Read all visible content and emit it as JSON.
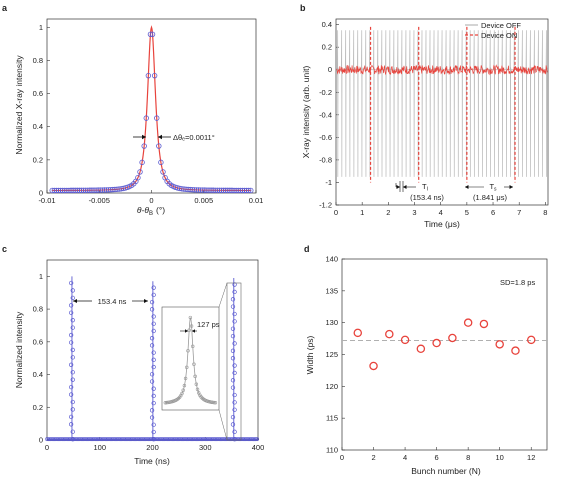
{
  "colors": {
    "red": "#e8433c",
    "blue": "#5b5bd0",
    "gray": "#b8b8b8",
    "gray_dark": "#9a9a9a",
    "dash": "#b0b0b0"
  },
  "panels": [
    {
      "id": "a",
      "label": "a"
    },
    {
      "id": "b",
      "label": "b"
    },
    {
      "id": "c",
      "label": "c"
    },
    {
      "id": "d",
      "label": "d"
    }
  ],
  "chart_data": [
    {
      "id": "a",
      "type": "scatter",
      "xlabel": "θ-θB (°)",
      "xlabel_main": "θ-θ",
      "xlabel_sub": "B",
      "xlabel_unit": "(°)",
      "ylabel": "Normalized X-ray intensity",
      "xlim": [
        -0.01,
        0.01
      ],
      "ylim": [
        0,
        1.05
      ],
      "xticks": [
        -0.01,
        -0.005,
        0,
        0.005,
        0.01
      ],
      "xticklabels": [
        "-0.01",
        "-0.005",
        "0",
        "0.005",
        "0.01"
      ],
      "yticks": [
        0,
        0.2,
        0.4,
        0.6,
        0.8,
        1
      ],
      "yticklabels": [
        "0",
        "0.2",
        "0.4",
        "0.6",
        "0.8",
        "1"
      ],
      "annotation": "Δθₑ=0.0011°",
      "fwhm": 0.0011,
      "series": [
        {
          "kind": "measured points (blue circles)",
          "x_from": -0.0095,
          "x_to": 0.0095,
          "step": 0.0002
        },
        {
          "kind": "fit (red line)",
          "peak": 1.0,
          "fwhm": 0.0011
        }
      ]
    },
    {
      "id": "b",
      "type": "line",
      "xlabel": "Time (μs)",
      "ylabel": "X-ray intensity (arb. unit)",
      "xlim": [
        0,
        8.1
      ],
      "ylim": [
        -1.2,
        0.45
      ],
      "xticks": [
        0,
        1,
        2,
        3,
        4,
        5,
        6,
        7,
        8
      ],
      "xticklabels": [
        "0",
        "1",
        "2",
        "3",
        "4",
        "5",
        "6",
        "7",
        "8"
      ],
      "yticks": [
        -1.2,
        -1,
        -0.8,
        -0.6,
        -0.4,
        -0.2,
        0,
        0.2,
        0.4
      ],
      "yticklabels": [
        "-1.2",
        "-1",
        "-0.8",
        "-0.6",
        "-0.4",
        "-0.2",
        "0",
        "0.2",
        "0.4"
      ],
      "legend": [
        "Device OFF",
        "Device ON"
      ],
      "legend_position": "top-right",
      "series": [
        {
          "name": "Device OFF",
          "style": "gray solid",
          "period_us": 0.1534,
          "dip": -0.95,
          "peak": 0.35,
          "x_start": 0.07
        },
        {
          "name": "Device ON",
          "style": "red dashed",
          "pulse_times_us": [
            1.32,
            3.16,
            5.0,
            6.84
          ],
          "dip": -1.0,
          "peak": 0.38,
          "noise": 0.04
        }
      ],
      "annotations": [
        {
          "symbol": "T",
          "sub": "I",
          "value": "(153.4 ns)",
          "x_from": 2.29,
          "x_to": 2.44
        },
        {
          "symbol": "T",
          "sub": "s",
          "value": "(1.841 μs)",
          "x_from": 5.0,
          "x_to": 6.84
        }
      ]
    },
    {
      "id": "c",
      "type": "scatter",
      "xlabel": "Time (ns)",
      "ylabel": "Normalized intensity",
      "xlim": [
        0,
        400
      ],
      "ylim": [
        0,
        1.1
      ],
      "xticks": [
        0,
        100,
        200,
        300,
        400
      ],
      "xticklabels": [
        "0",
        "100",
        "200",
        "300",
        "400"
      ],
      "yticks": [
        0,
        0.2,
        0.4,
        0.6,
        0.8,
        1
      ],
      "yticklabels": [
        "0",
        "0.2",
        "0.4",
        "0.6",
        "0.8",
        "1"
      ],
      "peaks": [
        {
          "x": 47.3,
          "y": 1.0
        },
        {
          "x": 200.7,
          "y": 0.97
        },
        {
          "x": 354.1,
          "y": 0.99
        }
      ],
      "annotation_spacing": "153.4 ns",
      "inset_annotation": "127 ps",
      "pulse_width_ps": 127
    },
    {
      "id": "d",
      "type": "scatter",
      "xlabel": "Bunch number (N)",
      "ylabel": "Width (ps)",
      "xlim": [
        0,
        13
      ],
      "ylim": [
        110,
        140
      ],
      "xticks": [
        0,
        2,
        4,
        6,
        8,
        10,
        12
      ],
      "xticklabels": [
        "0",
        "2",
        "4",
        "6",
        "8",
        "10",
        "12"
      ],
      "yticks": [
        110,
        115,
        120,
        125,
        130,
        135,
        140
      ],
      "yticklabels": [
        "110",
        "115",
        "120",
        "125",
        "130",
        "135",
        "140"
      ],
      "annotation": "SD=1.8 ps",
      "mean": 127.2,
      "x": [
        1,
        2,
        3,
        4,
        5,
        6,
        7,
        8,
        9,
        10,
        11,
        12
      ],
      "y": [
        128.4,
        123.2,
        128.2,
        127.3,
        125.9,
        126.8,
        127.6,
        130.0,
        129.8,
        126.6,
        125.6,
        127.3
      ]
    }
  ]
}
